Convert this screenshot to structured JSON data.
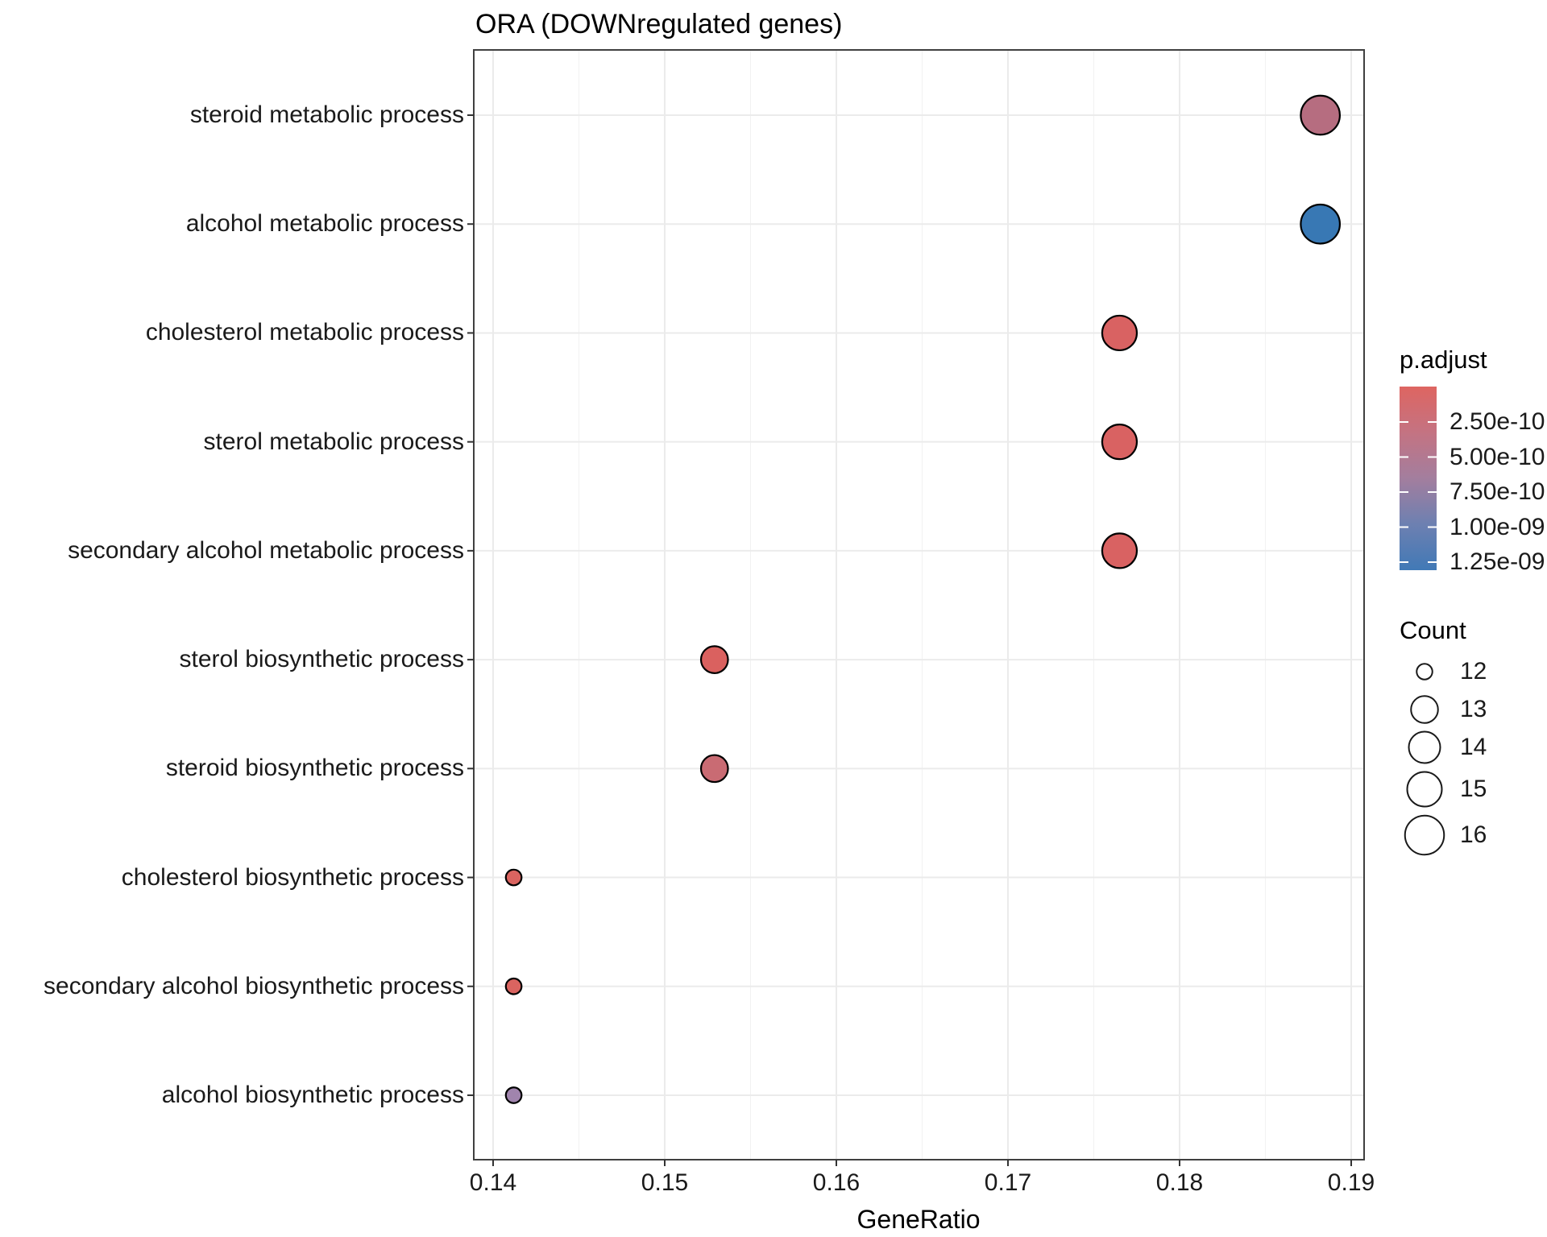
{
  "chart_data": {
    "type": "scatter",
    "title": "ORA (DOWNregulated genes)",
    "xlabel": "GeneRatio",
    "x_ticks": [
      0.14,
      0.15,
      0.16,
      0.17,
      0.18,
      0.19
    ],
    "x_tick_labels": [
      "0.14",
      "0.15",
      "0.16",
      "0.17",
      "0.18",
      "0.19"
    ],
    "x_range": [
      0.1389,
      0.1907
    ],
    "grid": "major-and-minor-x, major-y",
    "legend_position": "right",
    "points": [
      {
        "label": "steroid metabolic process",
        "gene_ratio": 0.1882,
        "count": 16,
        "color": "#B66D80"
      },
      {
        "label": "alcohol metabolic process",
        "gene_ratio": 0.1882,
        "count": 16,
        "color": "#3878B4"
      },
      {
        "label": "cholesterol metabolic process",
        "gene_ratio": 0.1765,
        "count": 15,
        "color": "#D96262"
      },
      {
        "label": "sterol metabolic process",
        "gene_ratio": 0.1765,
        "count": 15,
        "color": "#D96262"
      },
      {
        "label": "secondary alcohol metabolic process",
        "gene_ratio": 0.1765,
        "count": 15,
        "color": "#D96262"
      },
      {
        "label": "sterol biosynthetic process",
        "gene_ratio": 0.1529,
        "count": 13,
        "color": "#DA615F"
      },
      {
        "label": "steroid biosynthetic process",
        "gene_ratio": 0.1529,
        "count": 13,
        "color": "#C96B73"
      },
      {
        "label": "cholesterol biosynthetic process",
        "gene_ratio": 0.1412,
        "count": 12,
        "color": "#DA6460"
      },
      {
        "label": "secondary alcohol biosynthetic process",
        "gene_ratio": 0.1412,
        "count": 12,
        "color": "#DA6460"
      },
      {
        "label": "alcohol biosynthetic process",
        "gene_ratio": 0.1412,
        "count": 12,
        "color": "#A084AD"
      }
    ],
    "legend_padjust": {
      "title": "p.adjust",
      "tick_labels": [
        "2.50e-10",
        "5.00e-10",
        "7.50e-10",
        "1.00e-09",
        "1.25e-09"
      ],
      "gradient_stops": [
        "#DE6561",
        "#C47382",
        "#A37E9E",
        "#6D80B1",
        "#4179B6"
      ]
    },
    "legend_count": {
      "title": "Count",
      "entries": [
        "12",
        "13",
        "14",
        "15",
        "16"
      ]
    }
  }
}
